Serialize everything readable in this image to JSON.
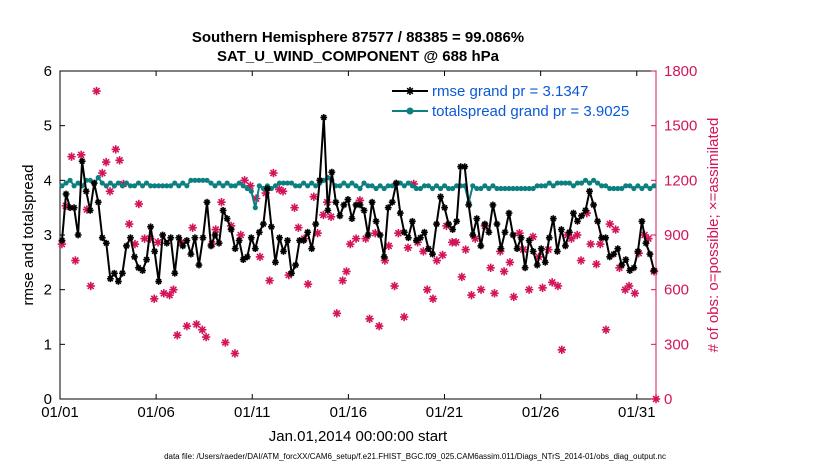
{
  "chart_data": {
    "type": "line",
    "title_lines": [
      "Southern Hemisphere 87577 / 88385 = 99.086%",
      "SAT_U_WIND_COMPONENT @ 688 hPa"
    ],
    "xlabel": "Jan.01,2014 00:00:00 start",
    "ylabel": "rmse and totalspread",
    "ylabel_right": "# of obs: o=possible; ×=assimilated",
    "footnote": "data file: /Users/raeder/DAI/ATM_forcXX/CAM6_setup/f.e21.FHIST_BGC.f09_025.CAM6assim.011/Diags_NTrS_2014-01/obs_diag_output.nc",
    "xlim": [
      0,
      31
    ],
    "ylim": [
      0,
      6
    ],
    "ylim_right": [
      0,
      1800
    ],
    "yticks": [
      0,
      1,
      2,
      3,
      4,
      5,
      6
    ],
    "yticks_right": [
      0,
      300,
      600,
      900,
      1200,
      1500,
      1800
    ],
    "xtick_values": [
      0,
      5,
      10,
      15,
      20,
      25,
      30
    ],
    "xtick_labels": [
      "01/01",
      "01/06",
      "01/11",
      "01/16",
      "01/21",
      "01/26",
      "01/31"
    ],
    "grid": false,
    "legend_position": "top-right",
    "series": [
      {
        "name": "rmse grand pr = 3.1347",
        "color": "#000000",
        "marker": "star",
        "values": [
          2.9,
          3.75,
          3.5,
          3.5,
          3.0,
          4.35,
          3.8,
          3.45,
          3.95,
          3.6,
          2.95,
          2.85,
          2.2,
          2.3,
          2.15,
          2.3,
          2.8,
          2.95,
          2.6,
          2.4,
          2.35,
          2.55,
          3.15,
          2.7,
          2.15,
          3.0,
          2.85,
          2.95,
          2.3,
          2.95,
          2.8,
          2.9,
          2.65,
          2.95,
          2.45,
          2.95,
          3.6,
          2.8,
          3.0,
          2.85,
          3.45,
          3.3,
          3.1,
          2.75,
          2.9,
          2.55,
          2.6,
          2.95,
          2.75,
          3.05,
          3.2,
          3.85,
          3.15,
          2.5,
          2.95,
          2.7,
          2.9,
          2.3,
          2.45,
          2.9,
          2.9,
          3.05,
          2.75,
          3.2,
          4.0,
          5.15,
          3.45,
          4.15,
          3.6,
          3.35,
          3.55,
          3.65,
          3.3,
          3.55,
          3.55,
          3.45,
          3.0,
          3.6,
          3.25,
          3.0,
          2.6,
          3.5,
          3.6,
          3.95,
          3.4,
          3.05,
          2.95,
          3.25,
          2.9,
          2.95,
          3.05,
          2.75,
          2.65,
          3.2,
          3.7,
          3.5,
          3.2,
          3.1,
          3.25,
          4.25,
          4.25,
          3.55,
          3.0,
          3.3,
          2.8,
          3.2,
          3.05,
          3.55,
          3.2,
          2.75,
          3.05,
          3.4,
          3.0,
          2.75,
          2.95,
          2.4,
          2.9,
          2.7,
          2.45,
          2.75,
          2.5,
          2.95,
          3.3,
          2.7,
          3.1,
          2.8,
          3.05,
          3.4,
          3.25,
          3.35,
          3.45,
          3.8,
          3.55,
          3.25,
          2.95,
          2.95,
          2.6,
          2.65,
          2.75,
          2.45,
          2.55,
          2.35,
          2.4,
          2.7,
          3.25,
          2.85,
          2.65,
          2.35
        ]
      },
      {
        "name": "totalspread grand pr = 3.9025",
        "color": "#0d7f80",
        "marker": "dot",
        "values": [
          3.9,
          3.95,
          4.0,
          3.9,
          3.95,
          3.9,
          4.0,
          4.0,
          3.95,
          4.05,
          3.95,
          3.9,
          3.95,
          3.9,
          3.95,
          3.9,
          3.95,
          3.9,
          3.9,
          3.95,
          3.9,
          3.95,
          3.9,
          3.9,
          3.9,
          3.9,
          3.9,
          3.9,
          3.95,
          3.9,
          3.95,
          3.9,
          4.0,
          4.0,
          4.0,
          4.0,
          4.0,
          3.95,
          3.9,
          3.95,
          3.9,
          3.95,
          3.9,
          3.9,
          3.95,
          3.9,
          3.85,
          3.8,
          3.5,
          3.9,
          3.85,
          3.9,
          3.85,
          3.9,
          3.95,
          3.95,
          3.95,
          3.95,
          3.9,
          3.9,
          3.95,
          3.9,
          3.95,
          3.9,
          3.95,
          4.0,
          4.05,
          4.0,
          3.9,
          3.9,
          3.95,
          3.9,
          3.95,
          3.9,
          3.85,
          3.95,
          3.9,
          3.9,
          3.85,
          3.9,
          3.85,
          3.9,
          3.9,
          3.95,
          3.95,
          3.9,
          3.95,
          3.9,
          3.85,
          3.85,
          3.9,
          3.9,
          3.85,
          3.9,
          3.85,
          3.9,
          3.85,
          3.85,
          3.9,
          3.9,
          3.9,
          3.6,
          3.9,
          3.85,
          3.85,
          3.9,
          3.85,
          3.9,
          3.85,
          3.85,
          3.85,
          3.85,
          3.85,
          3.85,
          3.85,
          3.85,
          3.85,
          3.85,
          3.9,
          3.9,
          3.9,
          3.95,
          3.9,
          3.95,
          3.95,
          3.95,
          3.95,
          3.9,
          3.95,
          3.95,
          4.0,
          3.95,
          4.0,
          3.95,
          3.9,
          3.9,
          3.85,
          3.85,
          3.85,
          3.85,
          3.9,
          3.9,
          3.85,
          3.9,
          3.85,
          3.9,
          3.85,
          3.9
        ]
      },
      {
        "name": "obs assimilated",
        "color": "#d4145a",
        "marker": "asterisk",
        "axis": "right",
        "x": [
          0.1,
          0.3,
          0.6,
          0.8,
          1.1,
          1.4,
          1.6,
          1.9,
          2.2,
          2.4,
          2.6,
          2.9,
          3.1,
          3.3,
          3.6,
          3.9,
          4.1,
          4.4,
          4.7,
          4.9,
          5.1,
          5.4,
          5.7,
          5.9,
          6.1,
          6.3,
          6.6,
          6.9,
          7.1,
          7.4,
          7.6,
          7.9,
          8.1,
          8.4,
          8.6,
          8.9,
          9.1,
          9.4,
          9.6,
          9.9,
          10.2,
          10.4,
          10.7,
          10.9,
          11.1,
          11.4,
          11.6,
          11.9,
          12.2,
          12.4,
          12.7,
          12.9,
          13.2,
          13.4,
          13.7,
          13.9,
          14.1,
          14.4,
          14.7,
          14.9,
          15.1,
          15.4,
          15.6,
          15.9,
          16.1,
          16.4,
          16.6,
          16.9,
          17.1,
          17.4,
          17.6,
          17.9,
          18.1,
          18.4,
          18.6,
          18.9,
          19.1,
          19.4,
          19.6,
          19.9,
          20.1,
          20.4,
          20.6,
          20.9,
          21.1,
          21.4,
          21.6,
          21.9,
          22.1,
          22.4,
          22.6,
          22.9,
          23.1,
          23.4,
          23.6,
          23.9,
          24.1,
          24.4,
          24.6,
          24.9,
          25.1,
          25.4,
          25.6,
          25.9,
          26.1,
          26.4,
          26.6,
          26.9,
          27.1,
          27.4,
          27.6,
          27.9,
          28.1,
          28.4,
          28.6,
          28.9,
          29.1,
          29.4,
          29.6,
          29.9,
          30.1,
          30.4,
          30.6,
          30.9,
          31.0
        ],
        "values": [
          850,
          1060,
          1330,
          760,
          1340,
          1040,
          620,
          1690,
          1240,
          1300,
          1140,
          1370,
          1310,
          1180,
          960,
          850,
          1070,
          880,
          880,
          550,
          860,
          580,
          570,
          600,
          350,
          860,
          400,
          940,
          410,
          380,
          340,
          850,
          930,
          1080,
          310,
          950,
          250,
          900,
          1200,
          1170,
          1100,
          780,
          1130,
          650,
          1240,
          1150,
          1140,
          680,
          1050,
          940,
          880,
          630,
          1110,
          910,
          1010,
          1080,
          1000,
          470,
          650,
          700,
          850,
          880,
          1090,
          880,
          440,
          910,
          400,
          760,
          840,
          620,
          910,
          450,
          830,
          1180,
          860,
          810,
          600,
          550,
          760,
          790,
          950,
          860,
          860,
          670,
          820,
          570,
          880,
          600,
          950,
          720,
          580,
          810,
          700,
          750,
          560,
          910,
          820,
          600,
          890,
          780,
          610,
          820,
          640,
          620,
          270,
          900,
          880,
          900,
          760,
          1020,
          850,
          740,
          850,
          380,
          960,
          930,
          720,
          600,
          620,
          580,
          800,
          900,
          880,
          700,
          0
        ]
      }
    ]
  }
}
